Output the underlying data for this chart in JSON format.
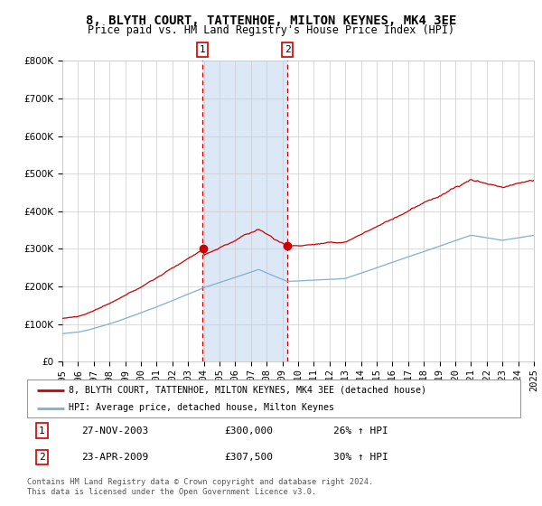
{
  "title": "8, BLYTH COURT, TATTENHOE, MILTON KEYNES, MK4 3EE",
  "subtitle": "Price paid vs. HM Land Registry's House Price Index (HPI)",
  "legend_line1": "8, BLYTH COURT, TATTENHOE, MILTON KEYNES, MK4 3EE (detached house)",
  "legend_line2": "HPI: Average price, detached house, Milton Keynes",
  "annotation1_label": "1",
  "annotation1_date": "27-NOV-2003",
  "annotation1_price": "£300,000",
  "annotation1_hpi": "26% ↑ HPI",
  "annotation2_label": "2",
  "annotation2_date": "23-APR-2009",
  "annotation2_price": "£307,500",
  "annotation2_hpi": "30% ↑ HPI",
  "footer": "Contains HM Land Registry data © Crown copyright and database right 2024.\nThis data is licensed under the Open Government Licence v3.0.",
  "sale1_year": 2003.9,
  "sale1_value": 300000,
  "sale2_year": 2009.32,
  "sale2_value": 307500,
  "year_start": 1995,
  "year_end": 2025,
  "ylim_min": 0,
  "ylim_max": 800000,
  "red_line_color": "#cc0000",
  "blue_line_color": "#7fb0d3",
  "dot_color": "#cc0000",
  "shade_color": "#dce8f5",
  "dashed_line_color": "#cc0000",
  "grid_color": "#cccccc",
  "background_color": "#ffffff",
  "title_fontsize": 10,
  "subtitle_fontsize": 8.5,
  "tick_fontsize": 7.5
}
